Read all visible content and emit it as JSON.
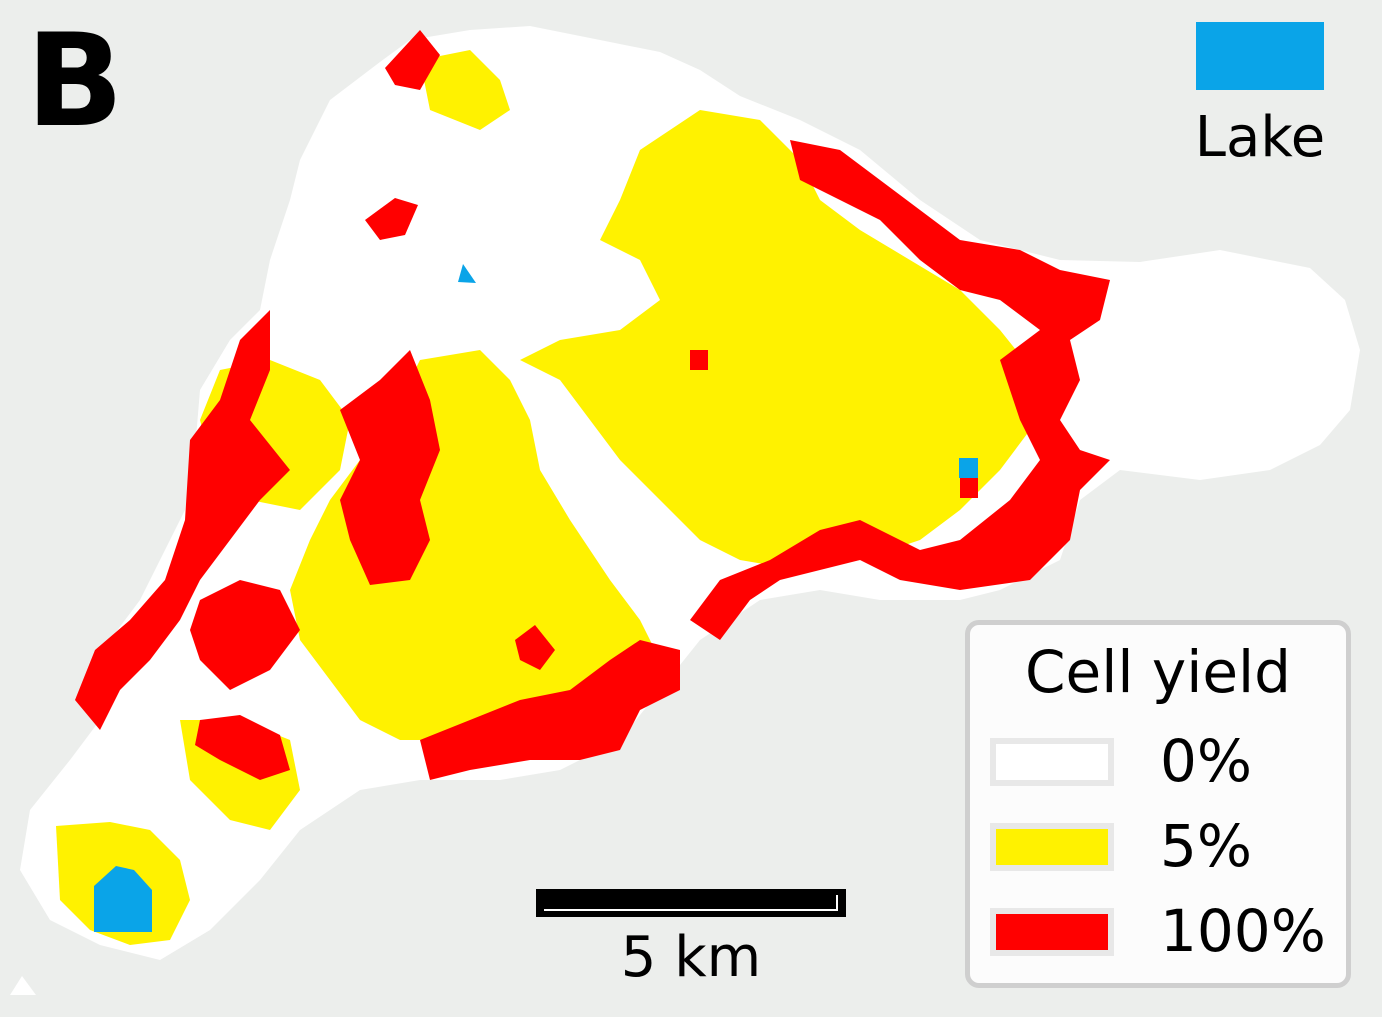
{
  "panel_label": "B",
  "colors": {
    "background": "#eceeec",
    "yield_0": "#ffffff",
    "yield_5": "#fff200",
    "yield_100": "#ff0000",
    "lake": "#0aa4e8"
  },
  "lake_legend": {
    "label": "Lake"
  },
  "yield_legend": {
    "title": "Cell yield",
    "entries": [
      {
        "label": "0%",
        "color": "#ffffff"
      },
      {
        "label": "5%",
        "color": "#fff200"
      },
      {
        "label": "100%",
        "color": "#ff0000"
      }
    ]
  },
  "scale_bar": {
    "label": "5 km"
  }
}
